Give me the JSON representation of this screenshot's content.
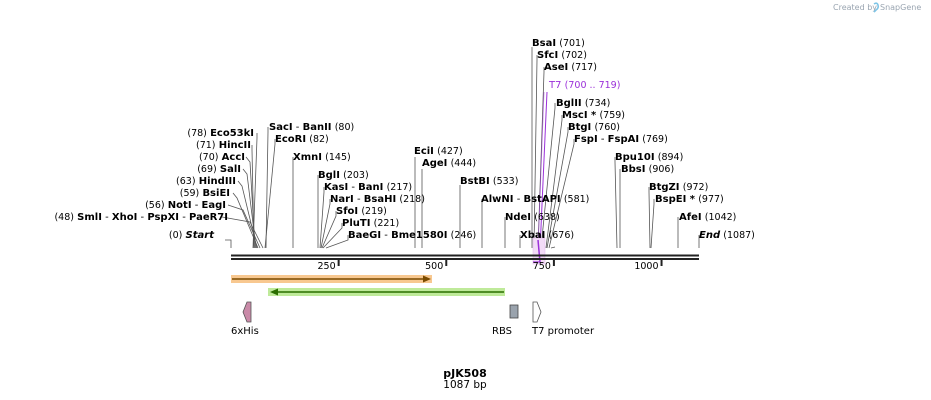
{
  "credit": {
    "prefix": "Created by",
    "brand": "SnapGene"
  },
  "plasmid": {
    "name": "pJK508",
    "length_label": "1087 bp",
    "length": 1087
  },
  "ruler": {
    "ticks": [
      {
        "bp": 250,
        "label": "250"
      },
      {
        "bp": 500,
        "label": "500"
      },
      {
        "bp": 750,
        "label": "750"
      },
      {
        "bp": 1000,
        "label": "1000"
      }
    ]
  },
  "sites": [
    {
      "name": "SmlI",
      "sep": "",
      "pos": "(48)"
    },
    {
      "name": "XhoI",
      "sep": "- ",
      "pos": ""
    },
    {
      "name": "PspXI",
      "sep": "- ",
      "pos": ""
    },
    {
      "name": "PaeR7I",
      "sep": "- ",
      "pos": ""
    },
    {
      "name": "NotI",
      "sep": "",
      "pos": "(56)"
    },
    {
      "name": "EagI",
      "sep": "- ",
      "pos": ""
    },
    {
      "name": "BsiEI",
      "sep": "",
      "pos": "(59)"
    },
    {
      "name": "HindIII",
      "sep": "",
      "pos": "(63)"
    },
    {
      "name": "SalI",
      "sep": "",
      "pos": "(69)"
    },
    {
      "name": "AccI",
      "sep": "",
      "pos": "(70)"
    },
    {
      "name": "HincII",
      "sep": "",
      "pos": "(71)"
    },
    {
      "name": "Eco53kI",
      "sep": "",
      "pos": "(78)"
    },
    {
      "name": "SacI",
      "sep": "",
      "pos": "(80)"
    },
    {
      "name": "BanII",
      "sep": "- ",
      "pos": ""
    },
    {
      "name": "EcoRI",
      "sep": "",
      "pos": "(82)"
    },
    {
      "name": "XmnI",
      "sep": "",
      "pos": "(145)"
    },
    {
      "name": "BglI",
      "sep": "",
      "pos": "(203)"
    },
    {
      "name": "KasI",
      "sep": "",
      "pos": "(217)"
    },
    {
      "name": "BanI",
      "sep": "- ",
      "pos": ""
    },
    {
      "name": "NarI",
      "sep": "",
      "pos": "(218)"
    },
    {
      "name": "BsaHI",
      "sep": "- ",
      "pos": ""
    },
    {
      "name": "SfoI",
      "sep": "",
      "pos": "(219)"
    },
    {
      "name": "PluTI",
      "sep": "",
      "pos": "(221)"
    },
    {
      "name": "BaeGI",
      "sep": "",
      "pos": "(246)"
    },
    {
      "name": "Bme1580I",
      "sep": "- ",
      "pos": ""
    },
    {
      "name": "EciI",
      "sep": "",
      "pos": "(427)"
    },
    {
      "name": "AgeI",
      "sep": "",
      "pos": "(444)"
    },
    {
      "name": "BstBI",
      "sep": "",
      "pos": "(533)"
    },
    {
      "name": "AlwNI",
      "sep": "",
      "pos": "(581)"
    },
    {
      "name": "BstAPI",
      "sep": "- ",
      "pos": ""
    },
    {
      "name": "NdeI",
      "sep": "",
      "pos": "(638)"
    },
    {
      "name": "XbaI",
      "sep": "",
      "pos": "(676)"
    },
    {
      "name": "BsaI",
      "sep": "",
      "pos": "(701)"
    },
    {
      "name": "SfcI",
      "sep": "",
      "pos": "(702)"
    },
    {
      "name": "AseI",
      "sep": "",
      "pos": "(717)"
    },
    {
      "name": "BglII",
      "sep": "",
      "pos": "(734)"
    },
    {
      "name": "MscI *",
      "sep": "",
      "pos": "(759)"
    },
    {
      "name": "BtgI",
      "sep": "",
      "pos": "(760)"
    },
    {
      "name": "FspI",
      "sep": "",
      "pos": "(769)"
    },
    {
      "name": "FspAI",
      "sep": "- ",
      "pos": ""
    },
    {
      "name": "Bpu10I",
      "sep": "",
      "pos": "(894)"
    },
    {
      "name": "BbsI",
      "sep": "",
      "pos": "(906)"
    },
    {
      "name": "BtgZI",
      "sep": "",
      "pos": "(972)"
    },
    {
      "name": "BspEI *",
      "sep": "",
      "pos": "(977)"
    },
    {
      "name": "AfeI",
      "sep": "",
      "pos": "(1042)"
    }
  ],
  "markers": {
    "start": {
      "label": "Start",
      "pos": "(0)"
    },
    "end": {
      "label": "End",
      "pos": "(1087)"
    }
  },
  "primer": {
    "name": "T7",
    "range": "(700 .. 719)",
    "color": "#9b30d9"
  },
  "features": [
    {
      "name": "6xHis",
      "type": "tag",
      "color": "#c98aa8"
    },
    {
      "name": "RBS",
      "type": "rbs",
      "color": "#9aa3ad"
    },
    {
      "name": "T7 promoter",
      "type": "promoter",
      "color": "#ffffff"
    }
  ],
  "orf_colors": {
    "top": "#f5b04a",
    "bottom": "#8fd65a",
    "line": "#7a4b00",
    "line2": "#2a6e00"
  }
}
